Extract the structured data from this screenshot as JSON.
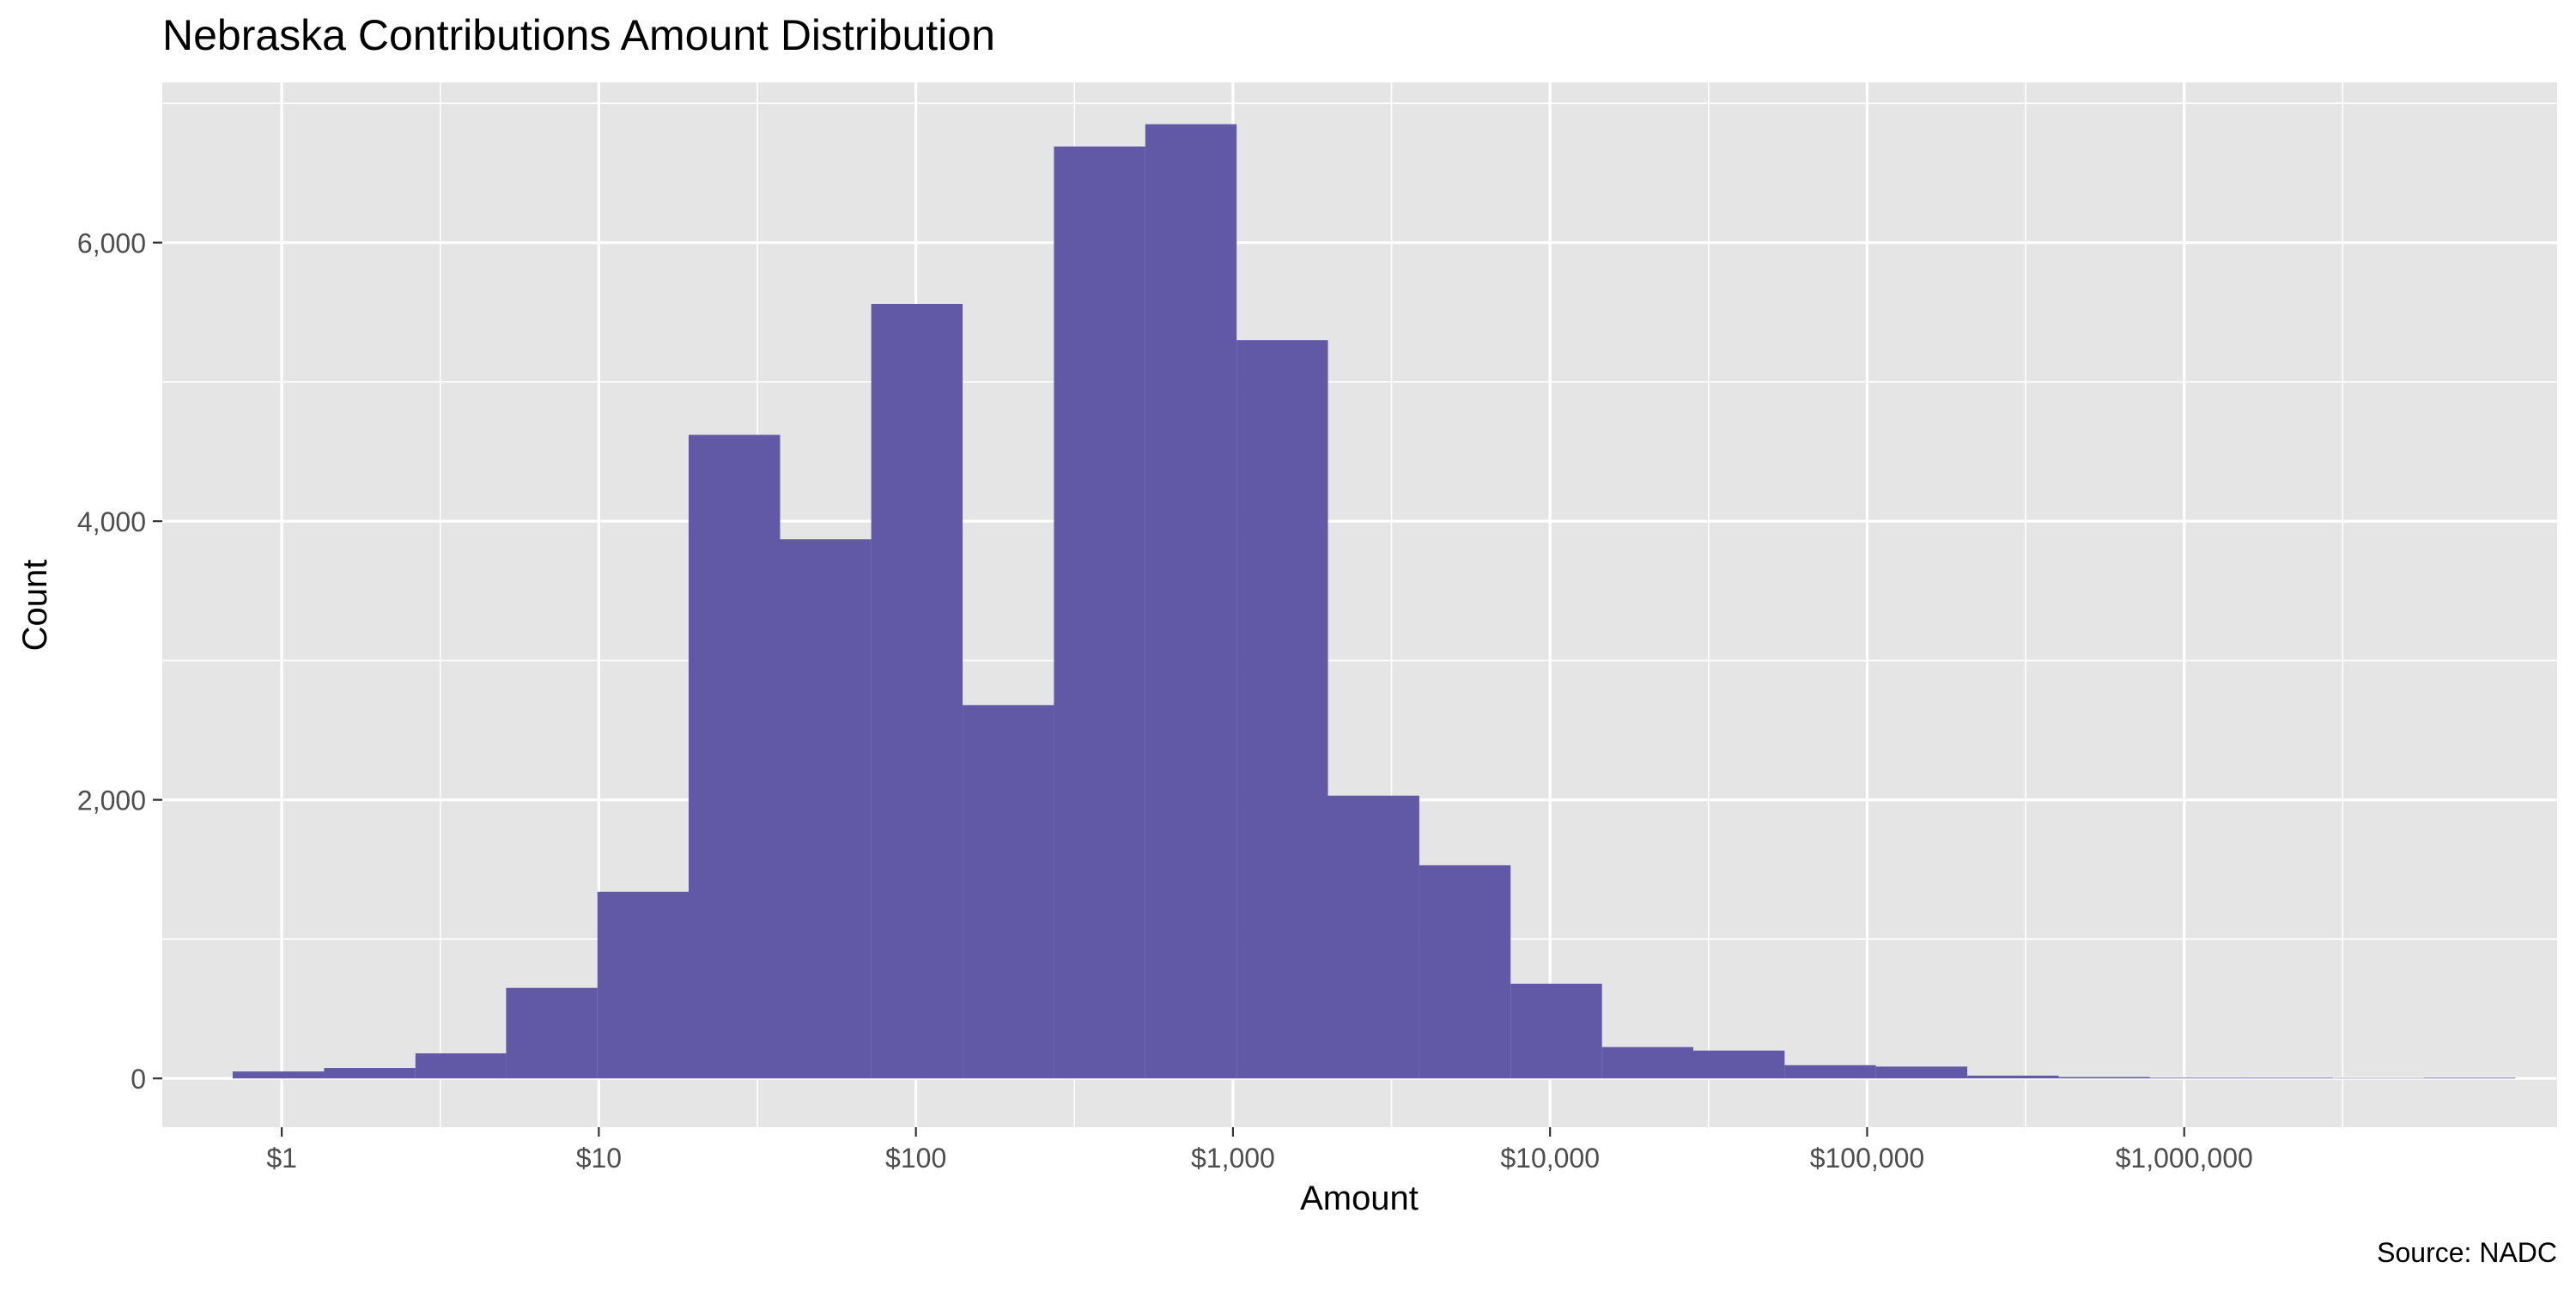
{
  "chart_data": {
    "type": "bar",
    "title": "Nebraska Contributions Amount Distribution",
    "xlabel": "Amount",
    "ylabel": "Count",
    "caption": "Source: NADC",
    "x_scale": "log10",
    "x_range": [
      0.42,
      15000000
    ],
    "ylim": [
      -350,
      7150
    ],
    "grid": true,
    "bar_color": "#6159A5",
    "panel_background": "#E5E5E5",
    "grid_color": "#FFFFFF",
    "x_ticks": [
      {
        "value": 1,
        "label": "$1"
      },
      {
        "value": 10,
        "label": "$10"
      },
      {
        "value": 100,
        "label": "$100"
      },
      {
        "value": 1000,
        "label": "$1,000"
      },
      {
        "value": 10000,
        "label": "$10,000"
      },
      {
        "value": 100000,
        "label": "$100,000"
      },
      {
        "value": 1000000,
        "label": "$1,000,000"
      }
    ],
    "y_ticks": [
      {
        "value": 0,
        "label": "0"
      },
      {
        "value": 2000,
        "label": "2,000"
      },
      {
        "value": 4000,
        "label": "4,000"
      },
      {
        "value": 6000,
        "label": "6,000"
      }
    ],
    "bins": [
      {
        "from": 0.7,
        "to": 1.36,
        "count": 50
      },
      {
        "from": 1.36,
        "to": 2.64,
        "count": 75
      },
      {
        "from": 2.64,
        "to": 5.1,
        "count": 180
      },
      {
        "from": 5.1,
        "to": 9.9,
        "count": 650
      },
      {
        "from": 9.9,
        "to": 19.2,
        "count": 1340
      },
      {
        "from": 19.2,
        "to": 37.3,
        "count": 4620
      },
      {
        "from": 37.3,
        "to": 72.3,
        "count": 3870
      },
      {
        "from": 72.3,
        "to": 140.4,
        "count": 5560
      },
      {
        "from": 140.4,
        "to": 272.5,
        "count": 2680
      },
      {
        "from": 272.5,
        "to": 529,
        "count": 6690
      },
      {
        "from": 529,
        "to": 1027,
        "count": 6850
      },
      {
        "from": 1027,
        "to": 1993,
        "count": 5300
      },
      {
        "from": 1993,
        "to": 3869,
        "count": 2030
      },
      {
        "from": 3869,
        "to": 7510,
        "count": 1530
      },
      {
        "from": 7510,
        "to": 14580,
        "count": 680
      },
      {
        "from": 14580,
        "to": 28300,
        "count": 225
      },
      {
        "from": 28300,
        "to": 54930,
        "count": 200
      },
      {
        "from": 54930,
        "to": 106600,
        "count": 95
      },
      {
        "from": 106600,
        "to": 207000,
        "count": 85
      },
      {
        "from": 207000,
        "to": 401900,
        "count": 20
      },
      {
        "from": 401900,
        "to": 780200,
        "count": 10
      },
      {
        "from": 780200,
        "to": 1514000,
        "count": 5
      },
      {
        "from": 1514000,
        "to": 2940000,
        "count": 5
      },
      {
        "from": 2940000,
        "to": 5708000,
        "count": 3
      },
      {
        "from": 5708000,
        "to": 11080000,
        "count": 5
      }
    ]
  }
}
